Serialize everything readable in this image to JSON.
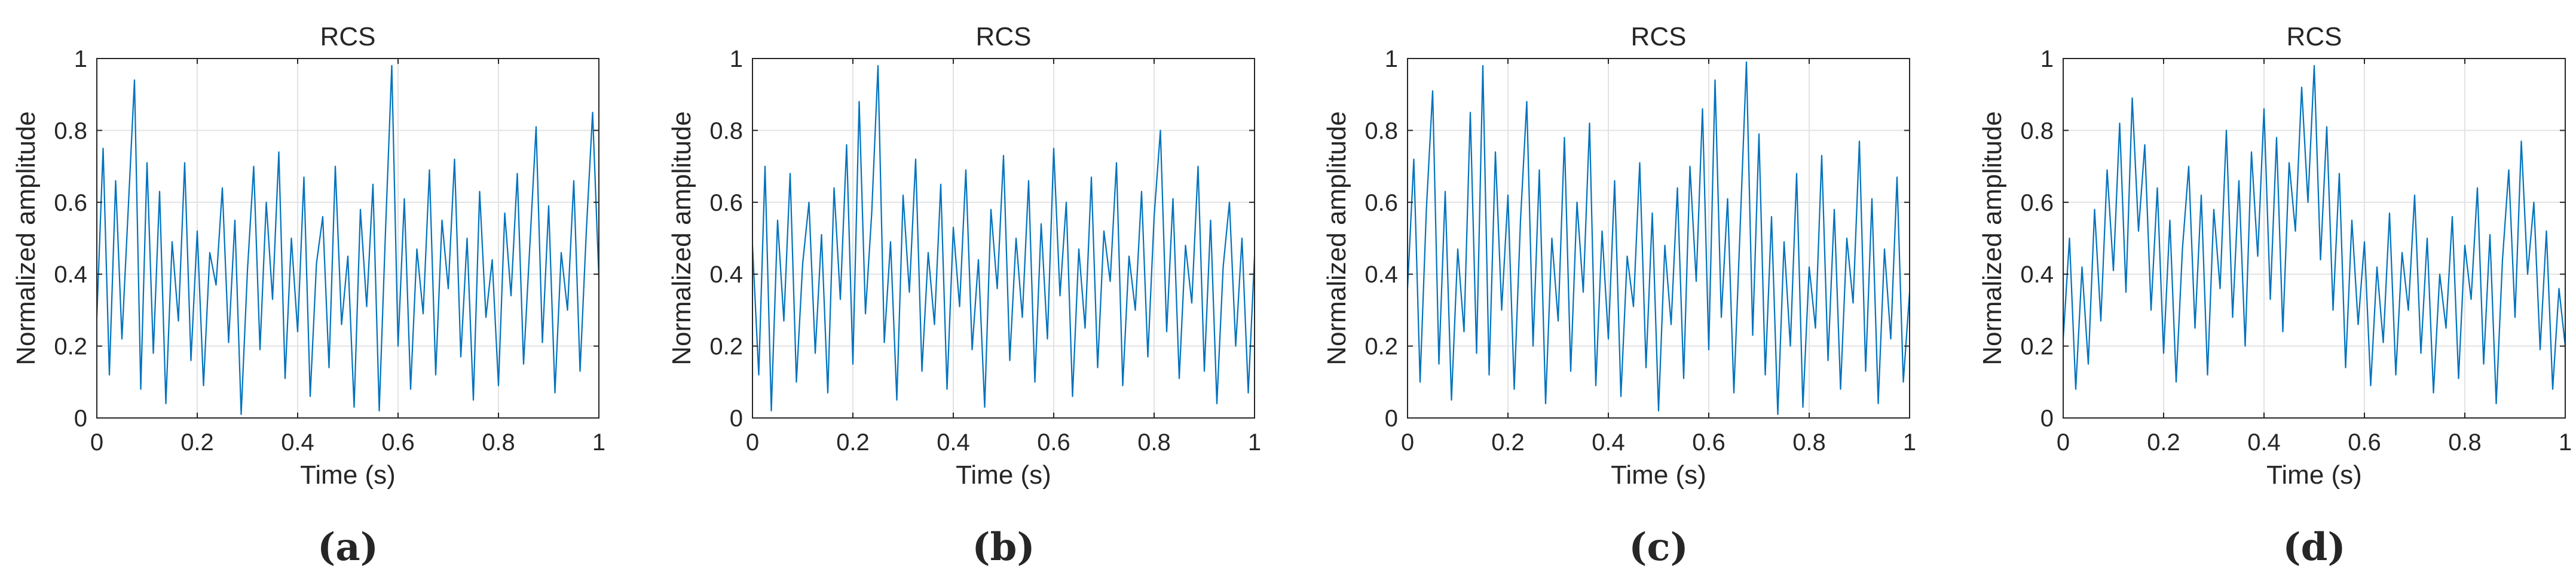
{
  "figure": {
    "panels": [
      {
        "caption": "(a)"
      },
      {
        "caption": "(b)"
      },
      {
        "caption": "(c)"
      },
      {
        "caption": "(d)"
      }
    ]
  },
  "chart_data": [
    {
      "type": "line",
      "title": "RCS",
      "xlabel": "Time (s)",
      "ylabel": "Normalized amplitude",
      "xlim": [
        0,
        1
      ],
      "ylim": [
        0,
        1
      ],
      "xticks": [
        "0",
        "0.2",
        "0.4",
        "0.6",
        "0.8",
        "1"
      ],
      "yticks": [
        "0",
        "0.2",
        "0.4",
        "0.6",
        "0.8",
        "1"
      ],
      "grid": true,
      "line_color": "#0072bd",
      "series": [
        {
          "x": [
            0.0,
            0.0125,
            0.025,
            0.0375,
            0.05,
            0.0625,
            0.075,
            0.0875,
            0.1,
            0.1125,
            0.125,
            0.1375,
            0.15,
            0.1625,
            0.175,
            0.1875,
            0.2,
            0.2125,
            0.225,
            0.2375,
            0.25,
            0.2625,
            0.275,
            0.2875,
            0.3,
            0.3125,
            0.325,
            0.3375,
            0.35,
            0.3625,
            0.375,
            0.3875,
            0.4,
            0.4125,
            0.425,
            0.4375,
            0.45,
            0.4625,
            0.475,
            0.4875,
            0.5,
            0.5125,
            0.525,
            0.5375,
            0.55,
            0.5625,
            0.575,
            0.5875,
            0.6,
            0.6125,
            0.625,
            0.6375,
            0.65,
            0.6625,
            0.675,
            0.6875,
            0.7,
            0.7125,
            0.725,
            0.7375,
            0.75,
            0.7625,
            0.775,
            0.7875,
            0.8,
            0.8125,
            0.825,
            0.8375,
            0.85,
            0.8625,
            0.875,
            0.8875,
            0.9,
            0.9125,
            0.925,
            0.9375,
            0.95,
            0.9625,
            0.975,
            0.9875,
            1.0
          ],
          "y": [
            0.28,
            0.75,
            0.12,
            0.66,
            0.22,
            0.58,
            0.94,
            0.08,
            0.71,
            0.18,
            0.63,
            0.04,
            0.49,
            0.27,
            0.71,
            0.16,
            0.52,
            0.09,
            0.46,
            0.37,
            0.64,
            0.21,
            0.55,
            0.01,
            0.41,
            0.7,
            0.19,
            0.6,
            0.33,
            0.74,
            0.11,
            0.5,
            0.24,
            0.67,
            0.06,
            0.43,
            0.56,
            0.14,
            0.7,
            0.26,
            0.45,
            0.03,
            0.58,
            0.31,
            0.65,
            0.02,
            0.52,
            0.98,
            0.2,
            0.61,
            0.08,
            0.47,
            0.29,
            0.69,
            0.12,
            0.55,
            0.36,
            0.72,
            0.17,
            0.5,
            0.05,
            0.63,
            0.28,
            0.44,
            0.09,
            0.57,
            0.34,
            0.68,
            0.15,
            0.48,
            0.81,
            0.21,
            0.59,
            0.07,
            0.46,
            0.3,
            0.66,
            0.13,
            0.52,
            0.85,
            0.39
          ]
        }
      ]
    },
    {
      "type": "line",
      "title": "RCS",
      "xlabel": "Time (s)",
      "ylabel": "Normalized amplitude",
      "xlim": [
        0,
        1
      ],
      "ylim": [
        0,
        1
      ],
      "xticks": [
        "0",
        "0.2",
        "0.4",
        "0.6",
        "0.8",
        "1"
      ],
      "yticks": [
        "0",
        "0.2",
        "0.4",
        "0.6",
        "0.8",
        "1"
      ],
      "grid": true,
      "line_color": "#0072bd",
      "series": [
        {
          "x": [
            0.0,
            0.0125,
            0.025,
            0.0375,
            0.05,
            0.0625,
            0.075,
            0.0875,
            0.1,
            0.1125,
            0.125,
            0.1375,
            0.15,
            0.1625,
            0.175,
            0.1875,
            0.2,
            0.2125,
            0.225,
            0.2375,
            0.25,
            0.2625,
            0.275,
            0.2875,
            0.3,
            0.3125,
            0.325,
            0.3375,
            0.35,
            0.3625,
            0.375,
            0.3875,
            0.4,
            0.4125,
            0.425,
            0.4375,
            0.45,
            0.4625,
            0.475,
            0.4875,
            0.5,
            0.5125,
            0.525,
            0.5375,
            0.55,
            0.5625,
            0.575,
            0.5875,
            0.6,
            0.6125,
            0.625,
            0.6375,
            0.65,
            0.6625,
            0.675,
            0.6875,
            0.7,
            0.7125,
            0.725,
            0.7375,
            0.75,
            0.7625,
            0.775,
            0.7875,
            0.8,
            0.8125,
            0.825,
            0.8375,
            0.85,
            0.8625,
            0.875,
            0.8875,
            0.9,
            0.9125,
            0.925,
            0.9375,
            0.95,
            0.9625,
            0.975,
            0.9875,
            1.0
          ],
          "y": [
            0.48,
            0.12,
            0.7,
            0.02,
            0.55,
            0.27,
            0.68,
            0.1,
            0.43,
            0.6,
            0.18,
            0.51,
            0.07,
            0.64,
            0.33,
            0.76,
            0.15,
            0.88,
            0.29,
            0.57,
            0.98,
            0.21,
            0.49,
            0.05,
            0.62,
            0.35,
            0.72,
            0.13,
            0.46,
            0.26,
            0.65,
            0.08,
            0.53,
            0.31,
            0.69,
            0.19,
            0.44,
            0.03,
            0.58,
            0.36,
            0.73,
            0.16,
            0.5,
            0.28,
            0.66,
            0.1,
            0.54,
            0.22,
            0.75,
            0.34,
            0.6,
            0.06,
            0.47,
            0.25,
            0.67,
            0.14,
            0.52,
            0.38,
            0.71,
            0.09,
            0.45,
            0.3,
            0.63,
            0.17,
            0.56,
            0.8,
            0.24,
            0.61,
            0.11,
            0.48,
            0.32,
            0.7,
            0.13,
            0.55,
            0.04,
            0.42,
            0.6,
            0.2,
            0.5,
            0.07,
            0.45
          ]
        }
      ]
    },
    {
      "type": "line",
      "title": "RCS",
      "xlabel": "Time (s)",
      "ylabel": "Normalized amplitude",
      "xlim": [
        0,
        1
      ],
      "ylim": [
        0,
        1
      ],
      "xticks": [
        "0",
        "0.2",
        "0.4",
        "0.6",
        "0.8",
        "1"
      ],
      "yticks": [
        "0",
        "0.2",
        "0.4",
        "0.6",
        "0.8",
        "1"
      ],
      "grid": true,
      "line_color": "#0072bd",
      "series": [
        {
          "x": [
            0.0,
            0.0125,
            0.025,
            0.0375,
            0.05,
            0.0625,
            0.075,
            0.0875,
            0.1,
            0.1125,
            0.125,
            0.1375,
            0.15,
            0.1625,
            0.175,
            0.1875,
            0.2,
            0.2125,
            0.225,
            0.2375,
            0.25,
            0.2625,
            0.275,
            0.2875,
            0.3,
            0.3125,
            0.325,
            0.3375,
            0.35,
            0.3625,
            0.375,
            0.3875,
            0.4,
            0.4125,
            0.425,
            0.4375,
            0.45,
            0.4625,
            0.475,
            0.4875,
            0.5,
            0.5125,
            0.525,
            0.5375,
            0.55,
            0.5625,
            0.575,
            0.5875,
            0.6,
            0.6125,
            0.625,
            0.6375,
            0.65,
            0.6625,
            0.675,
            0.6875,
            0.7,
            0.7125,
            0.725,
            0.7375,
            0.75,
            0.7625,
            0.775,
            0.7875,
            0.8,
            0.8125,
            0.825,
            0.8375,
            0.85,
            0.8625,
            0.875,
            0.8875,
            0.9,
            0.9125,
            0.925,
            0.9375,
            0.95,
            0.9625,
            0.975,
            0.9875,
            1.0
          ],
          "y": [
            0.36,
            0.72,
            0.1,
            0.58,
            0.91,
            0.15,
            0.63,
            0.05,
            0.47,
            0.24,
            0.85,
            0.18,
            0.98,
            0.12,
            0.74,
            0.3,
            0.62,
            0.08,
            0.55,
            0.88,
            0.2,
            0.69,
            0.04,
            0.5,
            0.27,
            0.78,
            0.13,
            0.6,
            0.35,
            0.82,
            0.09,
            0.52,
            0.22,
            0.66,
            0.06,
            0.45,
            0.31,
            0.71,
            0.14,
            0.57,
            0.02,
            0.48,
            0.26,
            0.64,
            0.11,
            0.7,
            0.38,
            0.86,
            0.19,
            0.94,
            0.28,
            0.61,
            0.07,
            0.53,
            0.99,
            0.23,
            0.79,
            0.12,
            0.56,
            0.01,
            0.49,
            0.2,
            0.68,
            0.03,
            0.42,
            0.25,
            0.73,
            0.16,
            0.58,
            0.08,
            0.5,
            0.32,
            0.77,
            0.13,
            0.61,
            0.04,
            0.47,
            0.22,
            0.67,
            0.1,
            0.35
          ]
        }
      ]
    },
    {
      "type": "line",
      "title": "RCS",
      "xlabel": "Time (s)",
      "ylabel": "Normalized amplitude",
      "xlim": [
        0,
        1
      ],
      "ylim": [
        0,
        1
      ],
      "xticks": [
        "0",
        "0.2",
        "0.4",
        "0.6",
        "0.8",
        "1"
      ],
      "yticks": [
        "0",
        "0.2",
        "0.4",
        "0.6",
        "0.8",
        "1"
      ],
      "grid": true,
      "line_color": "#0072bd",
      "series": [
        {
          "x": [
            0.0,
            0.0125,
            0.025,
            0.0375,
            0.05,
            0.0625,
            0.075,
            0.0875,
            0.1,
            0.1125,
            0.125,
            0.1375,
            0.15,
            0.1625,
            0.175,
            0.1875,
            0.2,
            0.2125,
            0.225,
            0.2375,
            0.25,
            0.2625,
            0.275,
            0.2875,
            0.3,
            0.3125,
            0.325,
            0.3375,
            0.35,
            0.3625,
            0.375,
            0.3875,
            0.4,
            0.4125,
            0.425,
            0.4375,
            0.45,
            0.4625,
            0.475,
            0.4875,
            0.5,
            0.5125,
            0.525,
            0.5375,
            0.55,
            0.5625,
            0.575,
            0.5875,
            0.6,
            0.6125,
            0.625,
            0.6375,
            0.65,
            0.6625,
            0.675,
            0.6875,
            0.7,
            0.7125,
            0.725,
            0.7375,
            0.75,
            0.7625,
            0.775,
            0.7875,
            0.8,
            0.8125,
            0.825,
            0.8375,
            0.85,
            0.8625,
            0.875,
            0.8875,
            0.9,
            0.9125,
            0.925,
            0.9375,
            0.95,
            0.9625,
            0.975,
            0.9875,
            1.0
          ],
          "y": [
            0.22,
            0.5,
            0.08,
            0.42,
            0.15,
            0.58,
            0.27,
            0.69,
            0.41,
            0.82,
            0.35,
            0.89,
            0.52,
            0.76,
            0.3,
            0.64,
            0.18,
            0.55,
            0.1,
            0.47,
            0.7,
            0.25,
            0.62,
            0.12,
            0.58,
            0.36,
            0.8,
            0.28,
            0.66,
            0.2,
            0.74,
            0.45,
            0.86,
            0.33,
            0.78,
            0.24,
            0.71,
            0.52,
            0.92,
            0.6,
            0.98,
            0.44,
            0.81,
            0.3,
            0.68,
            0.14,
            0.55,
            0.26,
            0.49,
            0.09,
            0.42,
            0.21,
            0.57,
            0.12,
            0.46,
            0.3,
            0.62,
            0.18,
            0.5,
            0.07,
            0.4,
            0.25,
            0.56,
            0.11,
            0.48,
            0.33,
            0.64,
            0.15,
            0.51,
            0.04,
            0.44,
            0.69,
            0.28,
            0.77,
            0.4,
            0.6,
            0.19,
            0.52,
            0.08,
            0.36,
            0.2
          ]
        }
      ]
    }
  ]
}
